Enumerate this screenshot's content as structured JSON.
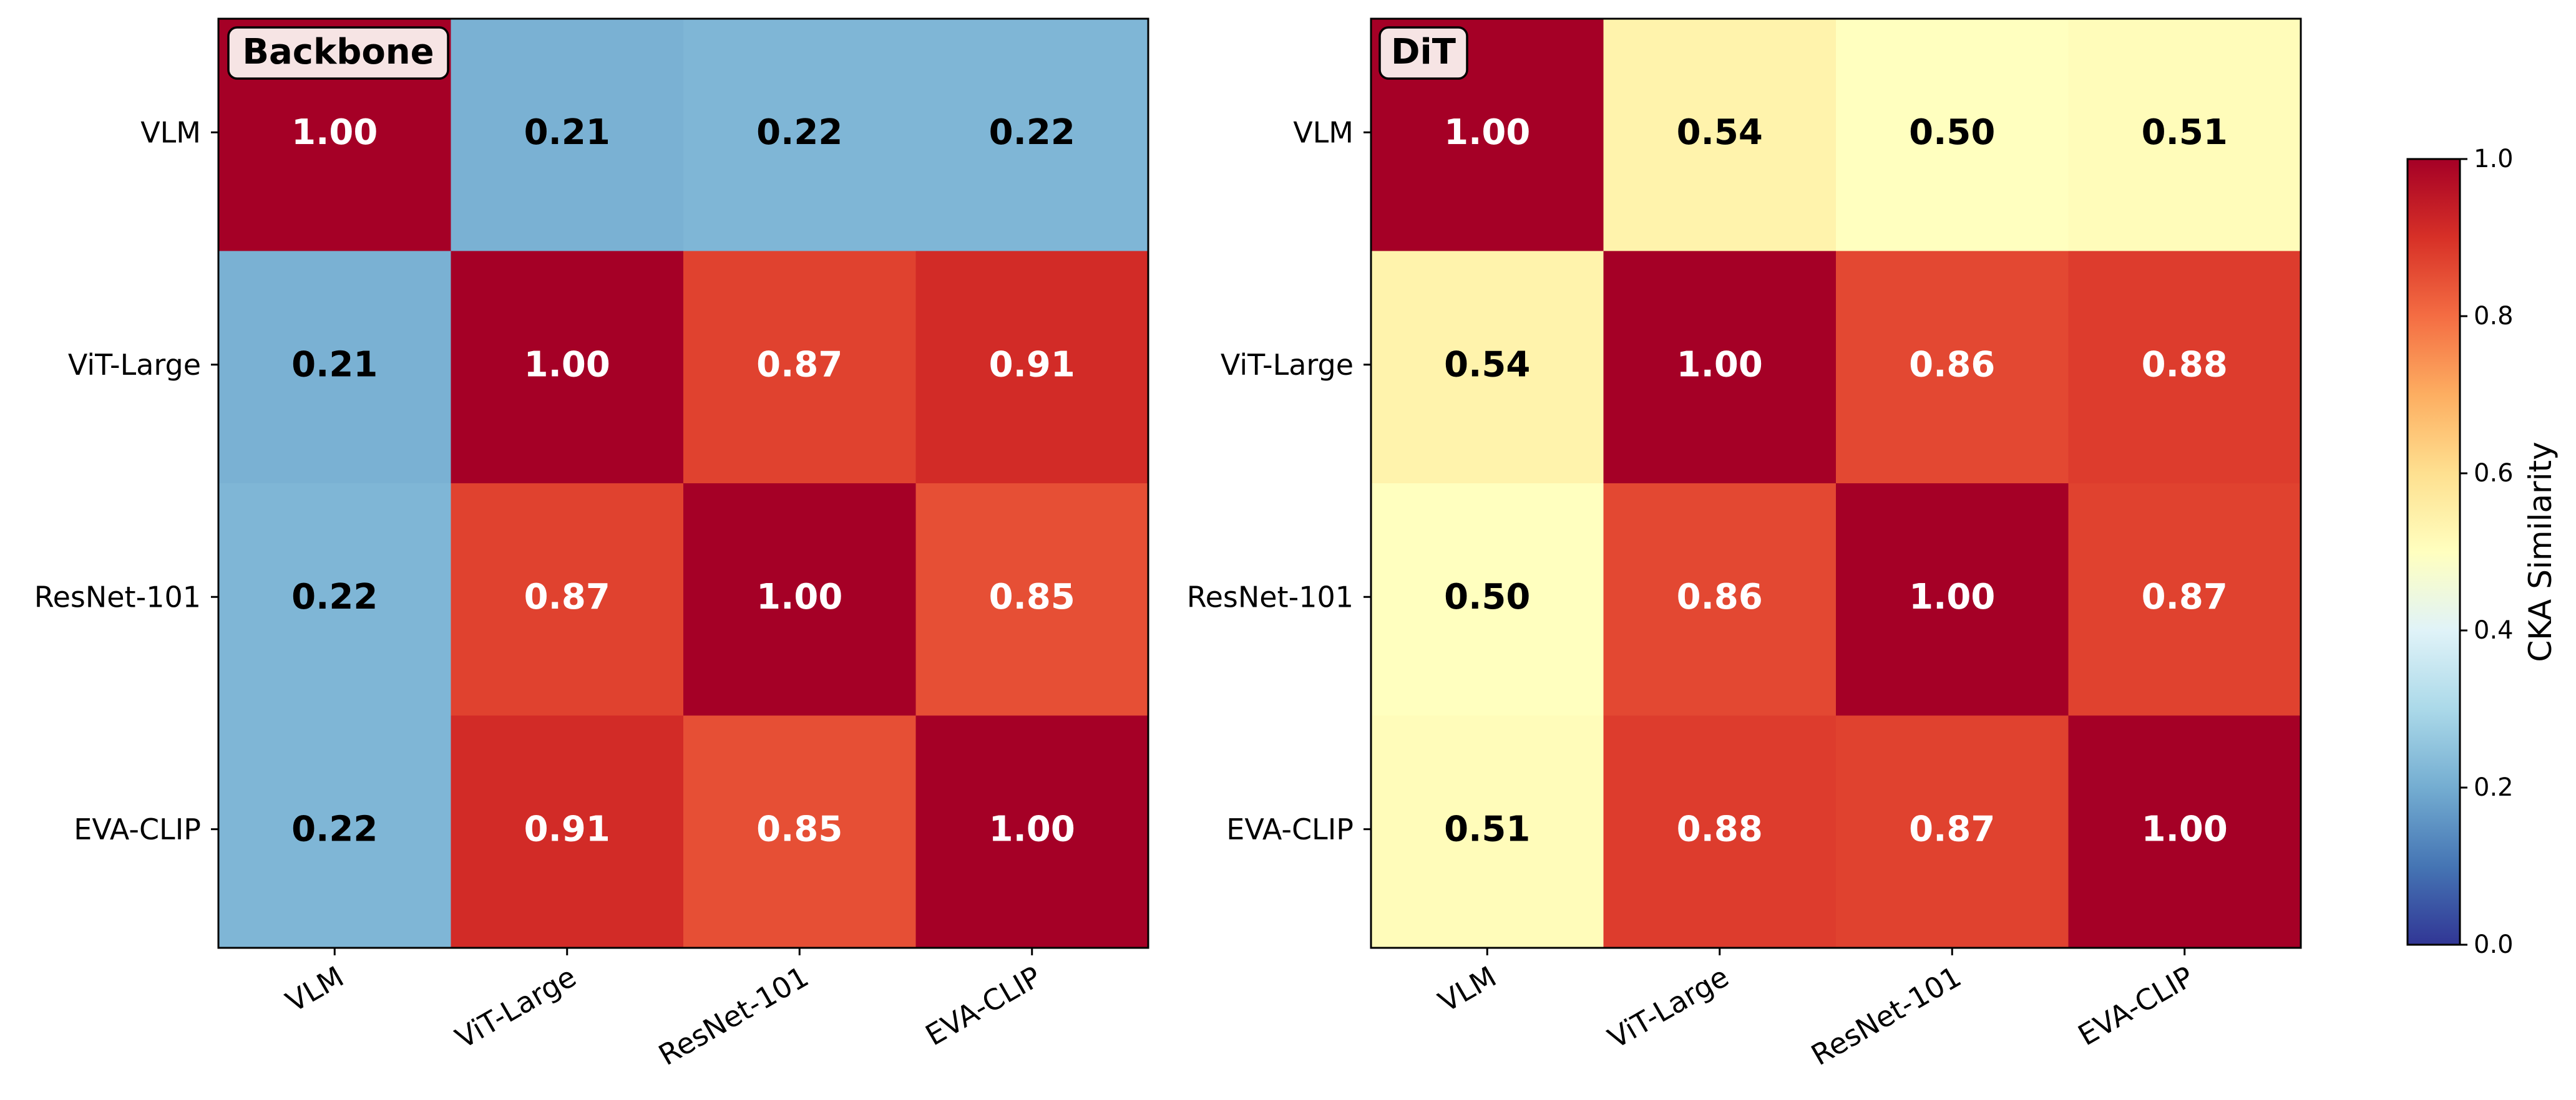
{
  "chart_data": {
    "type": "heatmap",
    "panels": [
      {
        "name": "backbone",
        "title": "Backbone",
        "row_labels": [
          "VLM",
          "ViT-Large",
          "ResNet-101",
          "EVA-CLIP"
        ],
        "col_labels": [
          "VLM",
          "ViT-Large",
          "ResNet-101",
          "EVA-CLIP"
        ],
        "values": [
          [
            1.0,
            0.21,
            0.22,
            0.22
          ],
          [
            0.21,
            1.0,
            0.87,
            0.91
          ],
          [
            0.22,
            0.87,
            1.0,
            0.85
          ],
          [
            0.22,
            0.91,
            0.85,
            1.0
          ]
        ],
        "value_labels": [
          [
            "1.00",
            "0.21",
            "0.22",
            "0.22"
          ],
          [
            "0.21",
            "1.00",
            "0.87",
            "0.91"
          ],
          [
            "0.22",
            "0.87",
            "1.00",
            "0.85"
          ],
          [
            "0.22",
            "0.91",
            "0.85",
            "1.00"
          ]
        ]
      },
      {
        "name": "dit",
        "title": "DiT",
        "row_labels": [
          "VLM",
          "ViT-Large",
          "ResNet-101",
          "EVA-CLIP"
        ],
        "col_labels": [
          "VLM",
          "ViT-Large",
          "ResNet-101",
          "EVA-CLIP"
        ],
        "values": [
          [
            1.0,
            0.54,
            0.5,
            0.51
          ],
          [
            0.54,
            1.0,
            0.86,
            0.88
          ],
          [
            0.5,
            0.86,
            1.0,
            0.87
          ],
          [
            0.51,
            0.88,
            0.87,
            1.0
          ]
        ],
        "value_labels": [
          [
            "1.00",
            "0.54",
            "0.50",
            "0.51"
          ],
          [
            "0.54",
            "1.00",
            "0.86",
            "0.88"
          ],
          [
            "0.50",
            "0.86",
            "1.00",
            "0.87"
          ],
          [
            "0.51",
            "0.88",
            "0.87",
            "1.00"
          ]
        ]
      }
    ],
    "colorbar": {
      "label": "CKA Similarity",
      "colormap": "RdYlBu_r",
      "range": [
        0.0,
        1.0
      ],
      "ticks": [
        0.0,
        0.2,
        0.4,
        0.6,
        0.8,
        1.0
      ],
      "tick_labels": [
        "0.0",
        "0.2",
        "0.4",
        "0.6",
        "0.8",
        "1.0"
      ]
    }
  },
  "colormap_stops": [
    "#313695",
    "#4575b4",
    "#74add1",
    "#abd9e9",
    "#e0f3f8",
    "#ffffbf",
    "#fee090",
    "#fdae61",
    "#f46d43",
    "#d73027",
    "#a50026"
  ],
  "colors": {
    "annotation_light": "#ffffff",
    "annotation_dark": "#000000",
    "title_box_fill": "#f6e4e4",
    "frame": "#000000"
  }
}
